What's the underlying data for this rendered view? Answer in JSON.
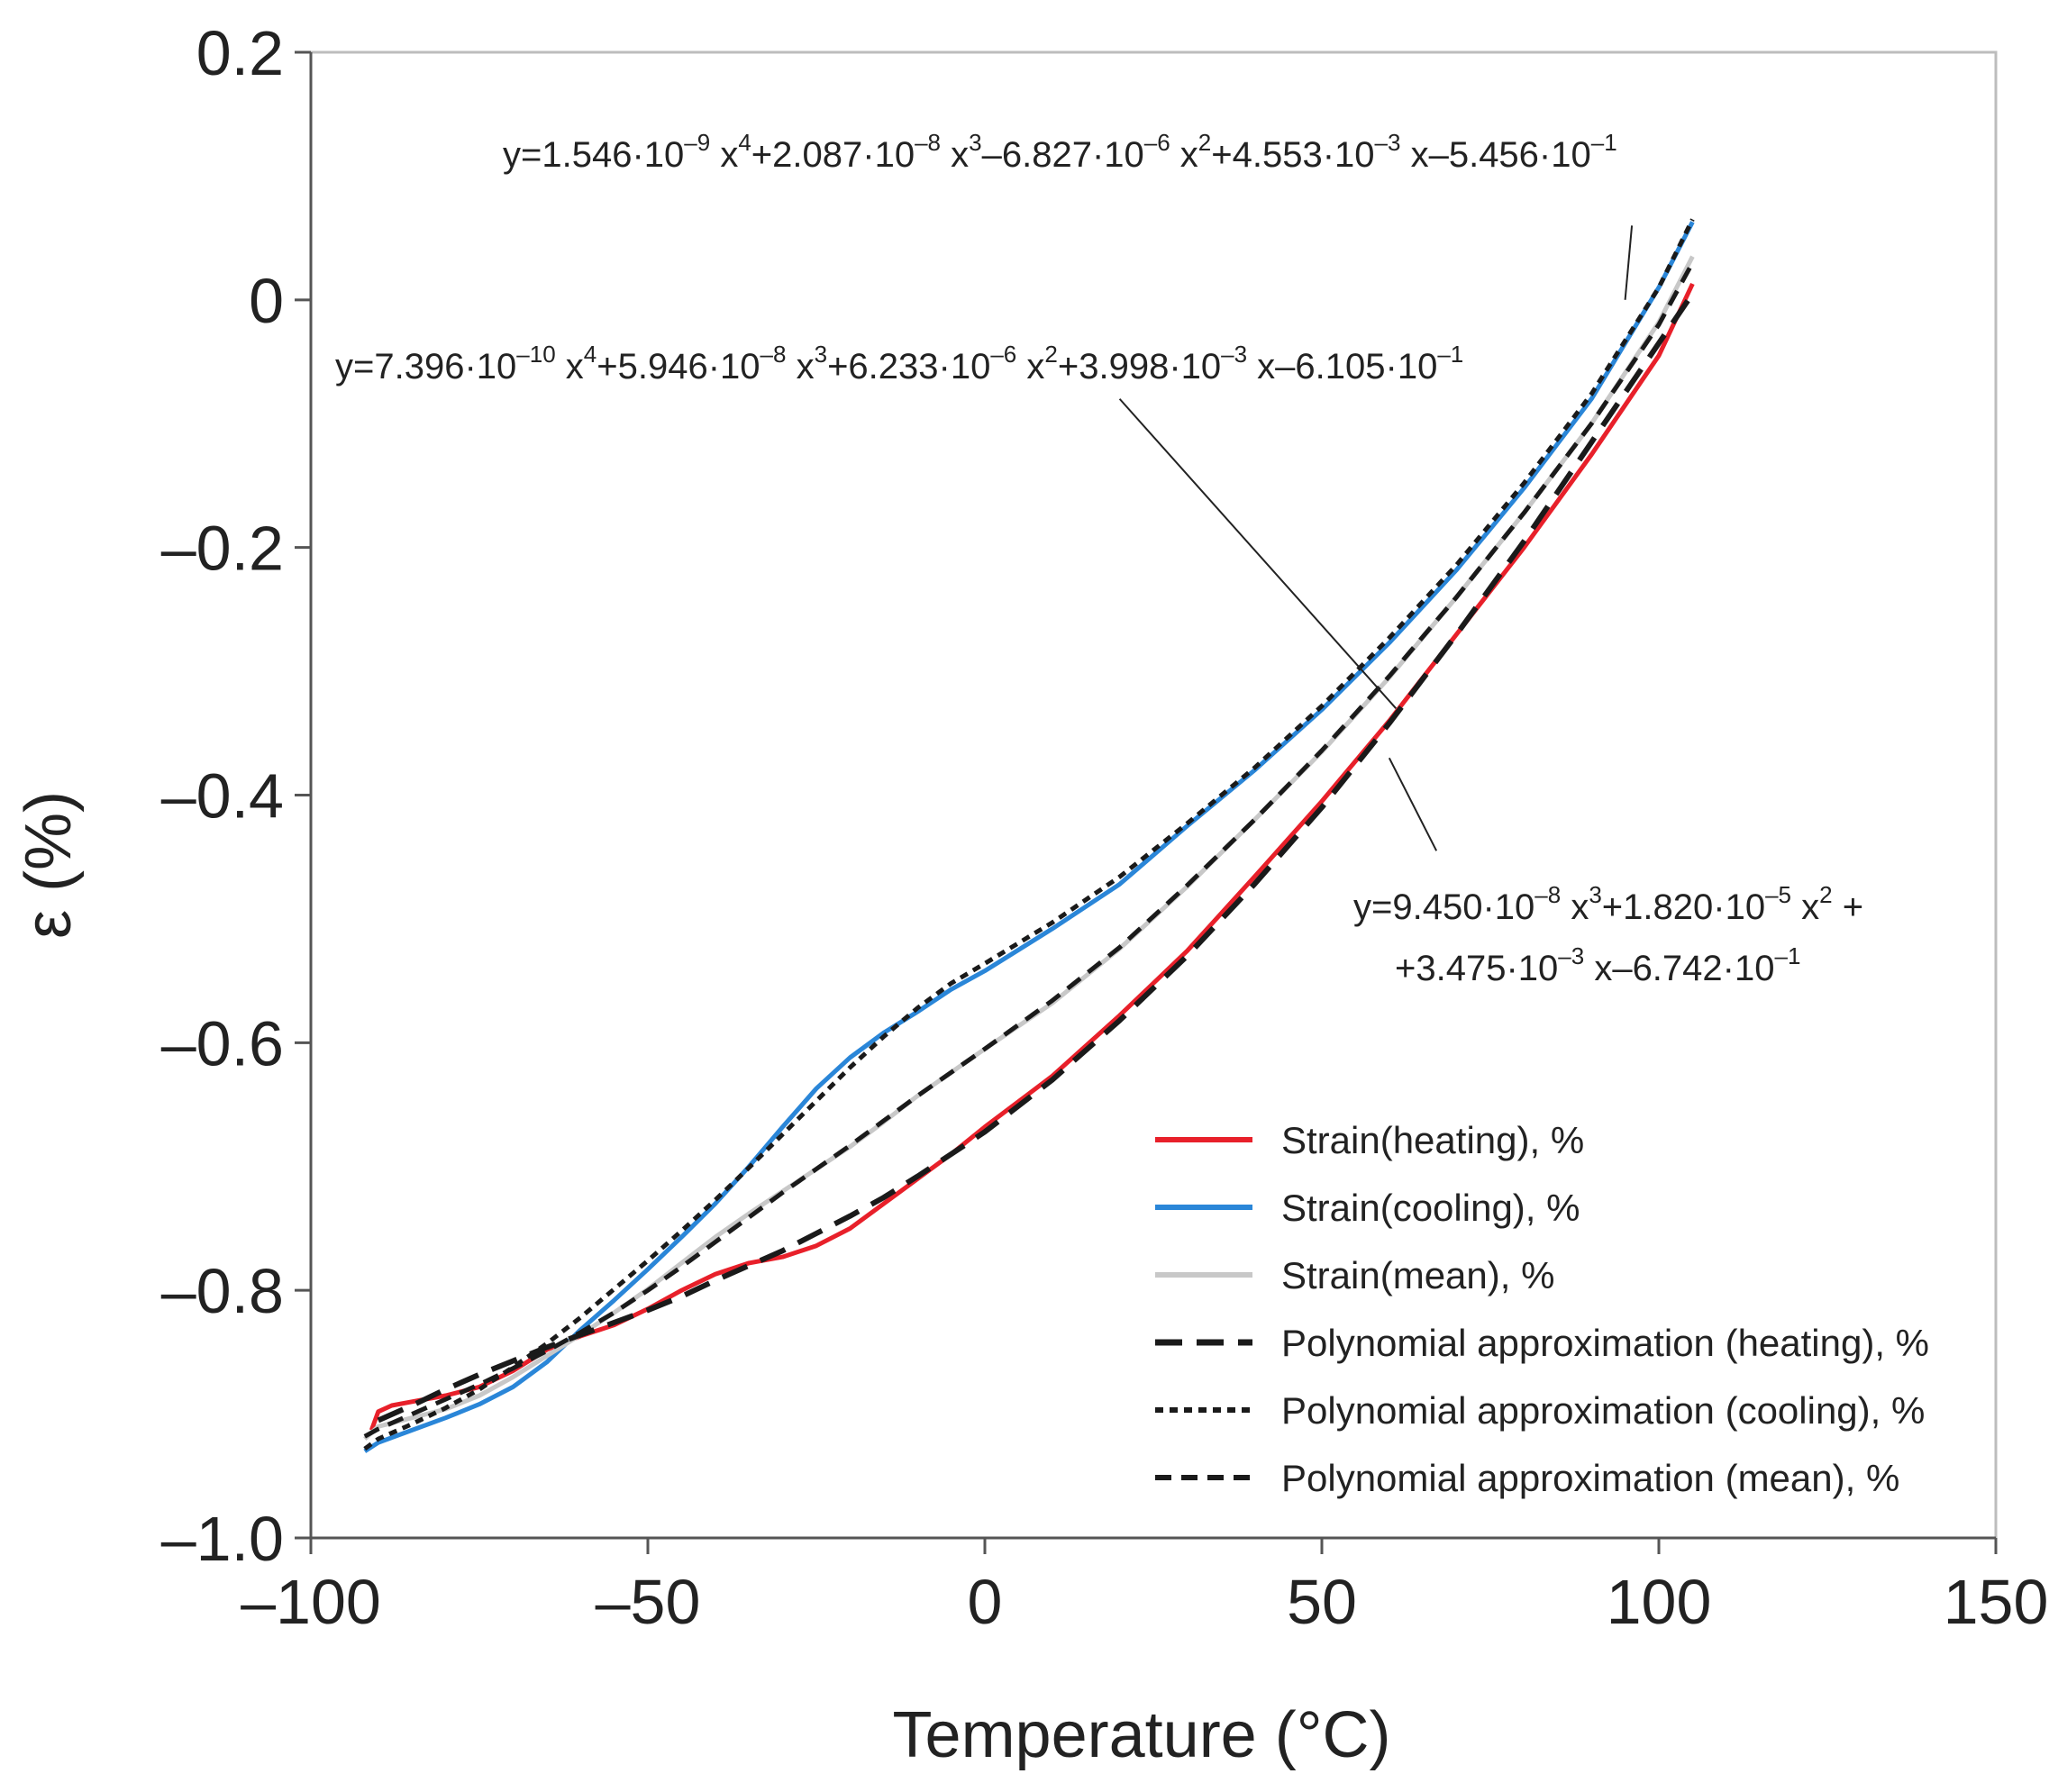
{
  "chart_data": {
    "type": "line",
    "title": "",
    "xlabel": "Temperature  (°C)",
    "ylabel": "ε (%)",
    "xlim": [
      -100,
      150
    ],
    "ylim": [
      -1.0,
      0.2
    ],
    "x_ticks": [
      {
        "value": -100,
        "label": "–100"
      },
      {
        "value": -50,
        "label": "–50"
      },
      {
        "value": 0,
        "label": "0"
      },
      {
        "value": 50,
        "label": "50"
      },
      {
        "value": 100,
        "label": "100"
      },
      {
        "value": 150,
        "label": "150"
      }
    ],
    "y_ticks": [
      {
        "value": 0.2,
        "label": "0.2"
      },
      {
        "value": 0,
        "label": "0"
      },
      {
        "value": -0.2,
        "label": "–0.2"
      },
      {
        "value": -0.4,
        "label": "–0.4"
      },
      {
        "value": -0.6,
        "label": "–0.6"
      },
      {
        "value": -0.8,
        "label": "–0.8"
      },
      {
        "value": -1.0,
        "label": "–1.0"
      }
    ],
    "grid": false,
    "legend_position": "bottom-right",
    "series": [
      {
        "name": "Strain(heating), %",
        "style": "solid",
        "color": "#e8202a",
        "x": [
          -91,
          -90,
          -88,
          -85,
          -80,
          -75,
          -70,
          -65,
          -60,
          -55,
          -50,
          -45,
          -40,
          -35,
          -30,
          -25,
          -20,
          -15,
          -10,
          -5,
          0,
          10,
          20,
          30,
          40,
          50,
          60,
          70,
          80,
          90,
          100,
          105
        ],
        "y": [
          -0.913,
          -0.898,
          -0.893,
          -0.89,
          -0.885,
          -0.878,
          -0.865,
          -0.848,
          -0.837,
          -0.828,
          -0.815,
          -0.8,
          -0.787,
          -0.778,
          -0.773,
          -0.764,
          -0.75,
          -0.73,
          -0.71,
          -0.69,
          -0.668,
          -0.627,
          -0.578,
          -0.526,
          -0.466,
          -0.405,
          -0.34,
          -0.27,
          -0.2,
          -0.125,
          -0.045,
          0.013
        ]
      },
      {
        "name": "Strain(cooling), %",
        "style": "solid",
        "color": "#2a86d8",
        "x": [
          -92,
          -90,
          -85,
          -80,
          -75,
          -70,
          -65,
          -60,
          -55,
          -50,
          -45,
          -40,
          -35,
          -30,
          -25,
          -20,
          -15,
          -10,
          -5,
          0,
          10,
          20,
          30,
          40,
          50,
          60,
          70,
          80,
          90,
          100,
          105
        ],
        "y": [
          -0.93,
          -0.923,
          -0.913,
          -0.903,
          -0.892,
          -0.878,
          -0.858,
          -0.832,
          -0.808,
          -0.783,
          -0.757,
          -0.73,
          -0.7,
          -0.668,
          -0.637,
          -0.612,
          -0.592,
          -0.575,
          -0.557,
          -0.542,
          -0.508,
          -0.472,
          -0.425,
          -0.38,
          -0.331,
          -0.277,
          -0.218,
          -0.152,
          -0.08,
          0.01,
          0.063
        ]
      },
      {
        "name": "Strain(mean), %",
        "style": "solid",
        "color": "#c8c8c8",
        "x": [
          -92,
          -90,
          -85,
          -80,
          -75,
          -70,
          -65,
          -60,
          -55,
          -50,
          -45,
          -40,
          -35,
          -30,
          -25,
          -20,
          -15,
          -10,
          -5,
          0,
          10,
          20,
          30,
          40,
          50,
          60,
          70,
          80,
          90,
          100,
          105
        ],
        "y": [
          -0.92,
          -0.91,
          -0.903,
          -0.896,
          -0.885,
          -0.87,
          -0.853,
          -0.836,
          -0.818,
          -0.799,
          -0.778,
          -0.757,
          -0.738,
          -0.72,
          -0.702,
          -0.684,
          -0.664,
          -0.643,
          -0.624,
          -0.605,
          -0.568,
          -0.524,
          -0.474,
          -0.42,
          -0.365,
          -0.305,
          -0.24,
          -0.172,
          -0.1,
          -0.018,
          0.035
        ]
      },
      {
        "name": "Polynomial approximation (heating), %",
        "style": "long-dash",
        "color": "#1a1a1a",
        "x": [
          -90,
          -85,
          -80,
          -75,
          -70,
          -65,
          -60,
          -55,
          -50,
          -45,
          -40,
          -35,
          -30,
          -25,
          -20,
          -15,
          -10,
          -5,
          0,
          10,
          20,
          30,
          40,
          50,
          60,
          70,
          80,
          90,
          100,
          105
        ],
        "y": [
          -0.905,
          -0.893,
          -0.88,
          -0.868,
          -0.857,
          -0.846,
          -0.836,
          -0.826,
          -0.816,
          -0.805,
          -0.792,
          -0.78,
          -0.768,
          -0.754,
          -0.74,
          -0.725,
          -0.708,
          -0.69,
          -0.672,
          -0.63,
          -0.582,
          -0.53,
          -0.472,
          -0.41,
          -0.342,
          -0.27,
          -0.195,
          -0.115,
          -0.035,
          0.005
        ]
      },
      {
        "name": "Polynomial approximation (cooling), %",
        "style": "dotted",
        "color": "#1a1a1a",
        "x": [
          -92,
          -90,
          -85,
          -80,
          -75,
          -70,
          -65,
          -60,
          -55,
          -50,
          -45,
          -40,
          -35,
          -30,
          -25,
          -20,
          -15,
          -10,
          -5,
          0,
          10,
          20,
          30,
          40,
          50,
          60,
          70,
          80,
          90,
          100,
          105
        ],
        "y": [
          -0.928,
          -0.92,
          -0.908,
          -0.895,
          -0.88,
          -0.862,
          -0.843,
          -0.822,
          -0.799,
          -0.776,
          -0.752,
          -0.727,
          -0.701,
          -0.674,
          -0.647,
          -0.62,
          -0.595,
          -0.572,
          -0.552,
          -0.536,
          -0.503,
          -0.466,
          -0.423,
          -0.378,
          -0.328,
          -0.273,
          -0.214,
          -0.148,
          -0.076,
          0.01,
          0.065
        ]
      },
      {
        "name": "Polynomial approximation (mean), %",
        "style": "dashed",
        "color": "#1a1a1a",
        "x": [
          -92,
          -90,
          -85,
          -80,
          -75,
          -70,
          -65,
          -60,
          -55,
          -50,
          -45,
          -40,
          -35,
          -30,
          -25,
          -20,
          -15,
          -10,
          -5,
          0,
          10,
          20,
          30,
          40,
          50,
          60,
          70,
          80,
          90,
          100,
          105
        ],
        "y": [
          -0.918,
          -0.912,
          -0.9,
          -0.888,
          -0.876,
          -0.863,
          -0.849,
          -0.834,
          -0.818,
          -0.8,
          -0.781,
          -0.761,
          -0.741,
          -0.721,
          -0.702,
          -0.683,
          -0.663,
          -0.643,
          -0.624,
          -0.605,
          -0.566,
          -0.523,
          -0.473,
          -0.42,
          -0.364,
          -0.304,
          -0.24,
          -0.172,
          -0.1,
          -0.02,
          0.03
        ]
      }
    ],
    "annotations": [
      {
        "id": "cooling-eq",
        "parts": [
          {
            "t": "y=1.546·10"
          },
          {
            "t": "–9",
            "sup": true
          },
          {
            "t": " x"
          },
          {
            "t": "4",
            "sup": true
          },
          {
            "t": "+2.087·10"
          },
          {
            "t": "–8",
            "sup": true
          },
          {
            "t": " x"
          },
          {
            "t": "3",
            "sup": true
          },
          {
            "t": "–6.827·10"
          },
          {
            "t": "–6",
            "sup": true
          },
          {
            "t": " x"
          },
          {
            "t": "2",
            "sup": true
          },
          {
            "t": "+4.553·10"
          },
          {
            "t": "–3",
            "sup": true
          },
          {
            "t": " x–5.456·10"
          },
          {
            "t": "–1",
            "sup": true
          }
        ],
        "leader_from": [
          96,
          0.06
        ],
        "leader_to": [
          95,
          0.0
        ]
      },
      {
        "id": "mean-eq",
        "parts": [
          {
            "t": "y=7.396·10"
          },
          {
            "t": "–10",
            "sup": true
          },
          {
            "t": " x"
          },
          {
            "t": "4",
            "sup": true
          },
          {
            "t": "+5.946·10"
          },
          {
            "t": "–8",
            "sup": true
          },
          {
            "t": " x"
          },
          {
            "t": "3",
            "sup": true
          },
          {
            "t": "+6.233·10"
          },
          {
            "t": "–6",
            "sup": true
          },
          {
            "t": " x"
          },
          {
            "t": "2",
            "sup": true
          },
          {
            "t": "+3.998·10"
          },
          {
            "t": "–3",
            "sup": true
          },
          {
            "t": " x–6.105·10"
          },
          {
            "t": "–1",
            "sup": true
          }
        ],
        "leader_from": [
          20,
          -0.08
        ],
        "leader_to": [
          61,
          -0.33
        ]
      },
      {
        "id": "heating-eq-1",
        "parts": [
          {
            "t": "y=9.450·10"
          },
          {
            "t": "–8",
            "sup": true
          },
          {
            "t": " x"
          },
          {
            "t": "3",
            "sup": true
          },
          {
            "t": "+1.820·10"
          },
          {
            "t": "–5",
            "sup": true
          },
          {
            "t": " x"
          },
          {
            "t": "2",
            "sup": true
          },
          {
            "t": " +"
          }
        ],
        "leader_from": [
          67,
          -0.445
        ],
        "leader_to": [
          60,
          -0.37
        ]
      },
      {
        "id": "heating-eq-2",
        "parts": [
          {
            "t": "+3.475·10"
          },
          {
            "t": "–3",
            "sup": true
          },
          {
            "t": " x–6.742·10"
          },
          {
            "t": "–1",
            "sup": true
          }
        ]
      }
    ]
  }
}
